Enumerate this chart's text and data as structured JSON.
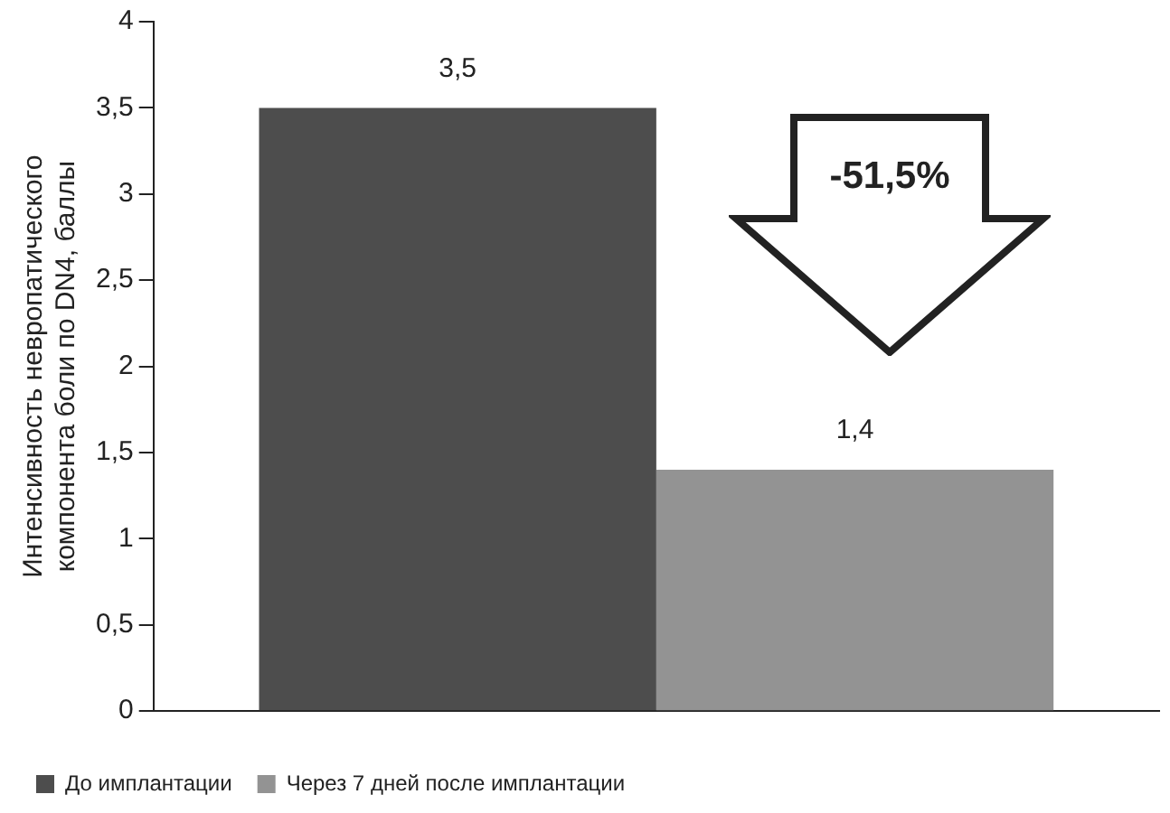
{
  "chart_data": {
    "type": "bar",
    "categories": [
      null
    ],
    "ylabel": "Интенсивность невропатического компонента боли по DN4, баллы",
    "series": [
      {
        "name": "До имплантации",
        "color": "#4d4d4d",
        "values": [
          3.5
        ],
        "value_labels": [
          "3,5"
        ]
      },
      {
        "name": "Через 7 дней после имплантации",
        "color": "#939393",
        "values": [
          1.4
        ],
        "value_labels": [
          "1,4"
        ]
      }
    ],
    "ylim": [
      0,
      4
    ],
    "yticks": [
      0,
      {
        "value": 0.5,
        "label": "0,5"
      },
      1,
      {
        "value": 1.5,
        "label": "1,5"
      },
      2,
      {
        "value": 2.5,
        "label": "2,5"
      },
      3,
      {
        "value": 3.5,
        "label": "3,5"
      },
      4
    ],
    "annotations": [
      "-51,5%"
    ],
    "grid": false,
    "legend": "bottom left"
  }
}
